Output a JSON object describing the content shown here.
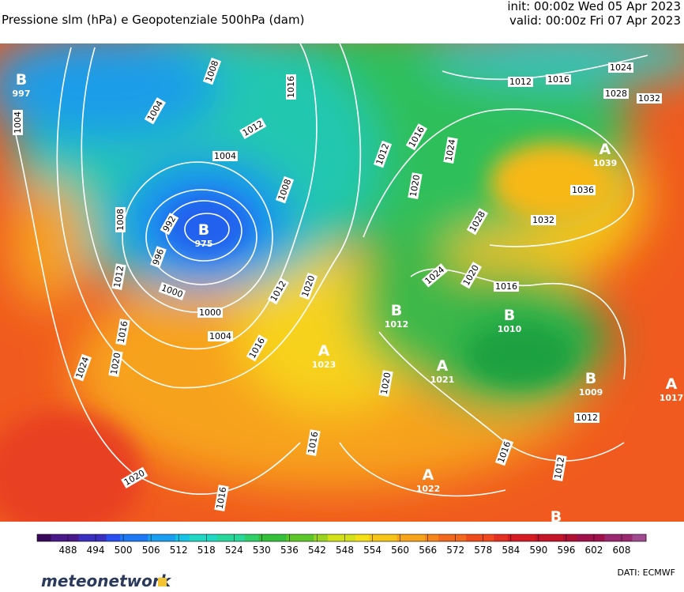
{
  "header": {
    "title": "Pressione slm (hPa) e Geopotenziale 500hPa (dam)",
    "init": "init: 00:00z Wed 05 Apr 2023",
    "valid": "valid: 00:00z Fri 07 Apr 2023"
  },
  "isobar_labels": [
    1004,
    1008,
    1016,
    1004,
    1012,
    1004,
    1008,
    1008,
    992,
    996,
    1000,
    1000,
    1004,
    1012,
    1016,
    1020,
    1024,
    1012,
    1020,
    1016,
    1020,
    1012,
    1016,
    1020,
    1024,
    1012,
    1016,
    1024,
    1028,
    1032,
    1036,
    1032,
    1028,
    1024,
    1020,
    1016,
    1016,
    1020,
    1016,
    1016,
    1012,
    1012
  ],
  "centers": [
    {
      "letter": "B",
      "value": 997
    },
    {
      "letter": "B",
      "value": 975
    },
    {
      "letter": "A",
      "value": 1039
    },
    {
      "letter": "A",
      "value": 1023
    },
    {
      "letter": "B",
      "value": 1012
    },
    {
      "letter": "A",
      "value": 1021
    },
    {
      "letter": "B",
      "value": 1010
    },
    {
      "letter": "B",
      "value": 1009
    },
    {
      "letter": "A",
      "value": 1017
    },
    {
      "letter": "A",
      "value": 1022
    },
    {
      "letter": "B"
    }
  ],
  "colorbar": {
    "ticks": [
      488,
      494,
      500,
      506,
      512,
      518,
      524,
      530,
      536,
      542,
      548,
      554,
      560,
      566,
      572,
      578,
      584,
      590,
      596,
      602,
      608
    ]
  },
  "footer": {
    "brand": "meteonetwork",
    "source": "DATI:  ECMWF"
  }
}
